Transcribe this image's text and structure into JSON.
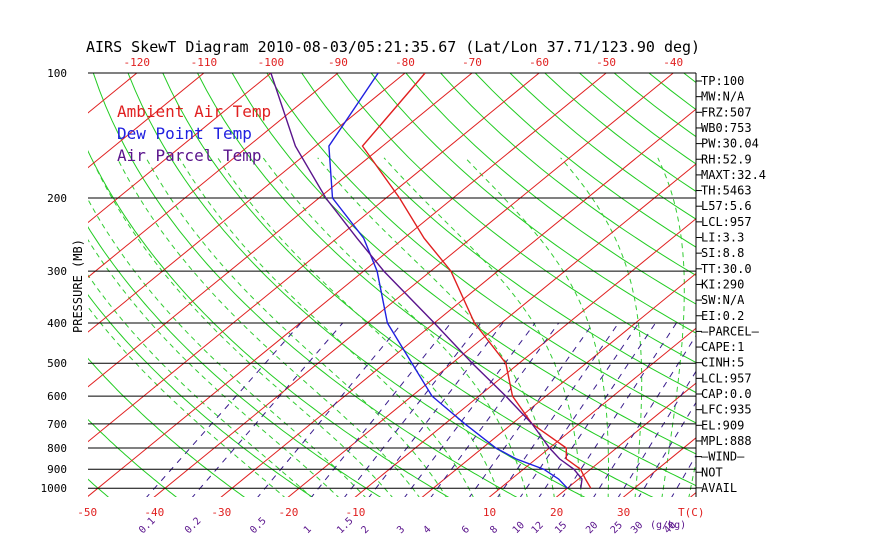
{
  "chart_data": {
    "type": "line",
    "title": "AIRS SkewT Diagram 2010-08-03/05:21:35.67 (Lat/Lon 37.71/123.90 deg)",
    "ylabel": "PRESSURE (MB)",
    "xlabel": "T(C)",
    "top_temp_ticks": [
      -120,
      -110,
      -100,
      -90,
      -80,
      -70,
      -60,
      -50,
      -40
    ],
    "top_temp_labels": [
      "-120",
      "-110",
      "-100",
      "-90",
      "-80",
      "-70",
      "-60",
      "-50",
      "-40"
    ],
    "bottom_temp_ticks": [
      -50,
      -40,
      -30,
      -20,
      -10,
      10,
      20,
      30
    ],
    "bottom_temp_labels": [
      "-50",
      "-40",
      "-30",
      "-20",
      "-10",
      "10",
      "20",
      "30"
    ],
    "bottom_unit_label": "T(C)",
    "pressure_levels": [
      100,
      200,
      300,
      400,
      500,
      600,
      700,
      800,
      900,
      1000
    ],
    "pressure_labels": [
      "100",
      "200",
      "300",
      "400",
      "500",
      "600",
      "700",
      "800",
      "900",
      "1000"
    ],
    "mixing_ratio_values": [
      0.1,
      0.2,
      0.5,
      1,
      1.5,
      2,
      3,
      4,
      6,
      8,
      10,
      12,
      15,
      20,
      25,
      30,
      40
    ],
    "mixing_ratio_labels": [
      "0.1",
      "0.2",
      "0.5",
      "1",
      "1.5",
      "2",
      "3",
      "4",
      "6",
      "8",
      "10",
      "12",
      "15",
      "20",
      "25",
      "30",
      "40"
    ],
    "mixing_ratio_unit": "(g/kg)",
    "legend": [
      {
        "label": "Ambient Air Temp",
        "color": "#e02020"
      },
      {
        "label": "Dew Point Temp",
        "color": "#2020e0"
      },
      {
        "label": "Air Parcel Temp",
        "color": "#5a148c"
      }
    ],
    "series": [
      {
        "name": "Ambient Air Temp",
        "color": "#e02020",
        "points": [
          {
            "p": 100,
            "t": -77
          },
          {
            "p": 150,
            "t": -73
          },
          {
            "p": 200,
            "t": -58
          },
          {
            "p": 250,
            "t": -47
          },
          {
            "p": 300,
            "t": -37
          },
          {
            "p": 400,
            "t": -24
          },
          {
            "p": 500,
            "t": -12
          },
          {
            "p": 600,
            "t": -5
          },
          {
            "p": 700,
            "t": 3
          },
          {
            "p": 800,
            "t": 12.5
          },
          {
            "p": 850,
            "t": 14.5
          },
          {
            "p": 900,
            "t": 18.5
          },
          {
            "p": 950,
            "t": 21
          },
          {
            "p": 1000,
            "t": 23.5
          }
        ]
      },
      {
        "name": "Dew Point Temp",
        "color": "#2020e0",
        "points": [
          {
            "p": 100,
            "t": -84
          },
          {
            "p": 150,
            "t": -78
          },
          {
            "p": 200,
            "t": -68
          },
          {
            "p": 250,
            "t": -56
          },
          {
            "p": 300,
            "t": -48
          },
          {
            "p": 400,
            "t": -37
          },
          {
            "p": 500,
            "t": -26
          },
          {
            "p": 600,
            "t": -17
          },
          {
            "p": 700,
            "t": -7
          },
          {
            "p": 800,
            "t": 2
          },
          {
            "p": 850,
            "t": 7
          },
          {
            "p": 900,
            "t": 13
          },
          {
            "p": 950,
            "t": 17
          },
          {
            "p": 1000,
            "t": 20
          }
        ]
      },
      {
        "name": "Air Parcel Temp",
        "color": "#5a148c",
        "points": [
          {
            "p": 100,
            "t": -100
          },
          {
            "p": 150,
            "t": -83
          },
          {
            "p": 200,
            "t": -69
          },
          {
            "p": 250,
            "t": -57
          },
          {
            "p": 300,
            "t": -47
          },
          {
            "p": 400,
            "t": -30
          },
          {
            "p": 500,
            "t": -17
          },
          {
            "p": 600,
            "t": -6
          },
          {
            "p": 700,
            "t": 3
          },
          {
            "p": 800,
            "t": 10
          },
          {
            "p": 850,
            "t": 13.5
          },
          {
            "p": 900,
            "t": 17.5
          },
          {
            "p": 950,
            "t": 20.5
          },
          {
            "p": 1000,
            "t": 22
          }
        ]
      }
    ],
    "indices": [
      "TP:100",
      "MW:N/A",
      "FRZ:507",
      "WB0:753",
      "PW:30.04",
      "RH:52.9",
      "MAXT:32.4",
      "TH:5463",
      "L57:5.6",
      "LCL:957",
      "LI:3.3",
      "SI:8.8",
      "TT:30.0",
      "KI:290",
      "SW:N/A",
      "EI:0.2",
      "—PARCEL—",
      "CAPE:1",
      "CINH:5",
      "LCL:957",
      "CAP:0.0",
      "LFC:935",
      "EL:909",
      "MPL:888",
      "—WIND—",
      "NOT",
      "AVAIL"
    ],
    "colors": {
      "isotherm": "#e02020",
      "dry_adiabat": "#22cc22",
      "moist_adiabat": "#33cc33",
      "mixing_ratio": "#3a1c8c",
      "isobar": "#000000",
      "axis_text": "#e02020",
      "mixing_text": "#5a148c"
    }
  }
}
